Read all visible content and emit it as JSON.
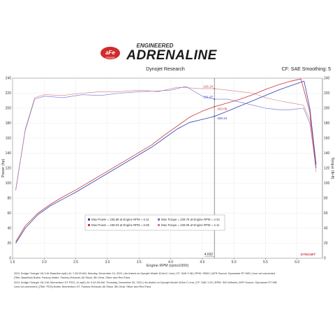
{
  "header": {
    "brand_top": "ENGINEERED",
    "brand_main": "ADRENALINE",
    "logo_text": "aFe",
    "logo_sub": "POWER",
    "left_label": "Dynojet Research",
    "right_label": "CF: SAE Smoothing: 5"
  },
  "colors": {
    "run1": "#2f3fb0",
    "run2": "#c8323a",
    "run3": "#6a6fd0",
    "run4": "#d07a86",
    "cursor": "#7a7a7a"
  },
  "legend": [
    {
      "color": "#2f3fb0",
      "text": "Max Power = 235.88 at Engine RPM = 6.11"
    },
    {
      "color": "#c8323a",
      "text": "Max Power = 239.03 at Engine RPM = 6.06"
    },
    {
      "color": "#6a6fd0",
      "text": "Max Torque = 228.75 at Engine RPM = 4.24"
    },
    {
      "color": "#d07a86",
      "text": "Max Torque = 228.05 at Engine RPM = 4.11"
    }
  ],
  "footer": {
    "line1": "2021 Dodge Charger V6-3.6L Baseline.wp8 | At: 7:45:03 AM, Monday, December 13, 2021 | As tested on Dynojet Model 424xLC Lina | CF: SAE 0.98 | RPM: OBD2 | AFR Source: Dynoware RT WB | Lina not connected",
    "line2": "[Title: Baseline] Notes: Factory Intake, Factory Exhaust, All Stock, 5th Gear, Silver and Red Fans",
    "line3": "2021 Dodge Charger V6-3.6L Momentum GT PDS_11.wp8 | At: 9:42:26 AM, Thursday, December 30, 2021 | As tested on Dynojet Model 424xLC Lina | CF: SAE 1.00 | RPM: SW Defined | AFR Source: Dynoware RT WB",
    "line4": "Lina not connected | [Title: PDS] Notes: Momentum GT, Factory Exhaust, All Stock, 5th Gear, Silver and Red Fans"
  },
  "watermark": "DYNOJET",
  "chart_data": {
    "type": "line",
    "xlabel": "Engine RPM (rpmx1000)",
    "ylabel_left": "Power (hp)",
    "ylabel_right": "Torque (lb-ft)",
    "xlim": [
      1.5,
      6.4
    ],
    "ylim": [
      0,
      240
    ],
    "x_ticks": [
      1.5,
      2.0,
      2.5,
      3.0,
      3.5,
      4.0,
      4.5,
      5.0,
      5.5,
      6.0
    ],
    "x_tick_labels": [
      "1.5",
      "2.0",
      "2.5",
      "3.0",
      "3.5",
      "4.0",
      "4.5",
      "5.0",
      "5.5",
      "6.0"
    ],
    "y_ticks": [
      0,
      20,
      40,
      60,
      80,
      100,
      120,
      140,
      160,
      180,
      200,
      220,
      240
    ],
    "cursor": {
      "x": 4.692,
      "label": "4.692",
      "values": [
        {
          "y": 226.24,
          "label": "226.24",
          "color": "#c8323a"
        },
        {
          "y": 211.97,
          "label": "211.97",
          "color": "#2f3fb0"
        },
        {
          "y": 202.08,
          "label": "202.08",
          "color": "#c8323a"
        },
        {
          "y": 189.34,
          "label": "189.34",
          "color": "#2f3fb0"
        }
      ]
    },
    "series": [
      {
        "color": "#2f3fb0",
        "kind": "power",
        "x": [
          1.55,
          1.7,
          1.9,
          2.1,
          2.3,
          2.5,
          2.7,
          2.9,
          3.1,
          3.3,
          3.5,
          3.7,
          3.9,
          4.1,
          4.3,
          4.5,
          4.69,
          4.9,
          5.1,
          5.3,
          5.5,
          5.7,
          5.9,
          6.11,
          6.2,
          6.3
        ],
        "y": [
          20,
          40,
          58,
          70,
          79,
          88,
          98,
          108,
          118,
          128,
          138,
          148,
          160,
          172,
          181,
          185,
          189,
          196,
          203,
          210,
          217,
          224,
          230,
          236,
          200,
          125
        ]
      },
      {
        "color": "#c8323a",
        "kind": "power",
        "x": [
          1.55,
          1.7,
          1.9,
          2.1,
          2.3,
          2.5,
          2.7,
          2.9,
          3.1,
          3.3,
          3.5,
          3.7,
          3.9,
          4.1,
          4.3,
          4.5,
          4.69,
          4.9,
          5.1,
          5.3,
          5.5,
          5.7,
          5.9,
          6.06,
          6.2,
          6.3
        ],
        "y": [
          22,
          43,
          60,
          72,
          82,
          91,
          101,
          111,
          121,
          131,
          141,
          151,
          164,
          176,
          188,
          196,
          202,
          207,
          212,
          218,
          225,
          231,
          236,
          239,
          195,
          120
        ]
      },
      {
        "color": "#6a6fd0",
        "kind": "torque",
        "x": [
          1.55,
          1.7,
          1.85,
          2.0,
          2.3,
          2.6,
          2.9,
          3.2,
          3.5,
          3.8,
          4.0,
          4.24,
          4.5,
          4.69,
          4.9,
          5.1,
          5.3,
          5.5,
          5.7,
          5.9,
          6.1,
          6.2,
          6.3
        ],
        "y": [
          90,
          170,
          212,
          216,
          214,
          218,
          217,
          220,
          222,
          223,
          224,
          229,
          216,
          212,
          212,
          208,
          204,
          200,
          198,
          198,
          200,
          180,
          120
        ]
      },
      {
        "color": "#d07a86",
        "kind": "torque",
        "x": [
          1.55,
          1.7,
          1.85,
          2.0,
          2.3,
          2.6,
          2.9,
          3.2,
          3.5,
          3.8,
          4.11,
          4.3,
          4.5,
          4.69,
          4.9,
          5.1,
          5.3,
          5.5,
          5.7,
          5.9,
          6.1,
          6.2,
          6.3
        ],
        "y": [
          92,
          172,
          214,
          218,
          217,
          220,
          222,
          222,
          224,
          222,
          228,
          227,
          226,
          226,
          224,
          222,
          220,
          214,
          210,
          207,
          204,
          185,
          115
        ]
      }
    ]
  }
}
